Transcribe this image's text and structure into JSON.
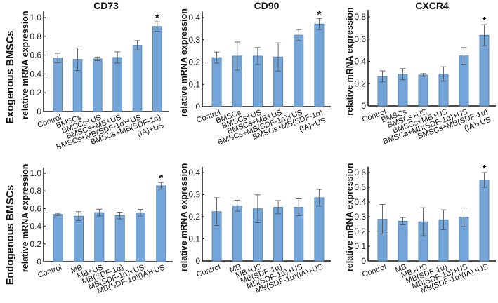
{
  "colors": {
    "bar": "#74a5d8",
    "bar_edge": "#4f7ca8",
    "error": "#555555",
    "axis": "#111111"
  },
  "row_labels": [
    "Exogenous BMSCs",
    "Endogenous BMSCs"
  ],
  "chart_data": [
    {
      "type": "bar",
      "title": "CD73",
      "row": 0,
      "ylabel": "relative mRNA expression",
      "ylim": [
        0,
        1.05
      ],
      "yticks": [
        "0",
        "0.2",
        "0.4",
        "0.6",
        "0.8",
        "1.0"
      ],
      "ytick_values": [
        0,
        0.2,
        0.4,
        0.6,
        0.8,
        1.0
      ],
      "categories": [
        "Control",
        "BMSCs",
        "BMSCs+US",
        "BMSCs+MB+US",
        "BMSCs+MB(SDF-1α)+US",
        "BMSCs+MB(SDF-1α)\n(IA)+US"
      ],
      "values": [
        0.57,
        0.555,
        0.56,
        0.575,
        0.705,
        0.905
      ],
      "errors": [
        0.05,
        0.12,
        0.02,
        0.06,
        0.05,
        0.05
      ],
      "significant": [
        false,
        false,
        false,
        false,
        false,
        true
      ],
      "sig_label": "*"
    },
    {
      "type": "bar",
      "title": "CD90",
      "row": 0,
      "ylabel": "relative mRNA expression",
      "ylim": [
        0,
        0.42
      ],
      "yticks": [
        "0",
        "0.1",
        "0.2",
        "0.3",
        "0.4"
      ],
      "ytick_values": [
        0,
        0.1,
        0.2,
        0.3,
        0.4
      ],
      "categories": [
        "Control",
        "BMSCs",
        "BMSCs+US",
        "BMSCs+MB+US",
        "BMSCs+MB(SDF-1α)+US",
        "BMSCs+MB(SDF-1α)\n(IA)+US"
      ],
      "values": [
        0.22,
        0.227,
        0.227,
        0.223,
        0.321,
        0.371
      ],
      "errors": [
        0.025,
        0.063,
        0.038,
        0.063,
        0.025,
        0.025
      ],
      "significant": [
        false,
        false,
        false,
        false,
        false,
        true
      ],
      "sig_label": "*"
    },
    {
      "type": "bar",
      "title": "CXCR4",
      "row": 0,
      "ylabel": "relative mRNA expression",
      "ylim": [
        0,
        0.85
      ],
      "yticks": [
        "0",
        "0.2",
        "0.4",
        "0.6",
        "0.8"
      ],
      "ytick_values": [
        0,
        0.2,
        0.4,
        0.6,
        0.8
      ],
      "categories": [
        "Control",
        "BMSCs",
        "BMSCs+US",
        "BMSCs+MB+US",
        "BMSCs+MB(SDF-1α)+US",
        "BMSCs+MB(SDF-1α)\n(IA)+US"
      ],
      "values": [
        0.265,
        0.285,
        0.278,
        0.287,
        0.449,
        0.635
      ],
      "errors": [
        0.05,
        0.05,
        0.012,
        0.065,
        0.075,
        0.095
      ],
      "significant": [
        false,
        false,
        false,
        false,
        false,
        true
      ],
      "sig_label": "*"
    },
    {
      "type": "bar",
      "title": "",
      "row": 1,
      "ylabel": "relative mRNA expression",
      "ylim": [
        0,
        1.05
      ],
      "yticks": [
        "0",
        "0.2",
        "0.4",
        "0.6",
        "0.8",
        "1.0"
      ],
      "ytick_values": [
        0,
        0.2,
        0.4,
        0.6,
        0.8,
        1.0
      ],
      "categories": [
        "Control",
        "MB",
        "MB+US",
        "MB(SDF-1α)",
        "MB(SDF-1α)+US",
        "MB(SDF-1α)(IA)+US"
      ],
      "values": [
        0.535,
        0.515,
        0.555,
        0.522,
        0.552,
        0.858
      ],
      "errors": [
        0.012,
        0.05,
        0.038,
        0.038,
        0.038,
        0.038
      ],
      "significant": [
        false,
        false,
        false,
        false,
        false,
        true
      ],
      "sig_label": "*"
    },
    {
      "type": "bar",
      "title": "",
      "row": 1,
      "ylabel": "relative mRNA expression",
      "ylim": [
        0,
        0.42
      ],
      "yticks": [
        "0",
        "0.1",
        "0.2",
        "0.3",
        "0.4"
      ],
      "ytick_values": [
        0,
        0.1,
        0.2,
        0.3,
        0.4
      ],
      "categories": [
        "Control",
        "MB",
        "MB+US",
        "MB(SDF-1α)",
        "MB(SDF-1α)+US",
        "MB(SDF-1α)(IA)+US"
      ],
      "values": [
        0.223,
        0.25,
        0.236,
        0.243,
        0.243,
        0.286
      ],
      "errors": [
        0.063,
        0.025,
        0.063,
        0.03,
        0.038,
        0.038
      ],
      "significant": [
        false,
        false,
        false,
        false,
        false,
        false
      ],
      "sig_label": "*"
    },
    {
      "type": "bar",
      "title": "",
      "row": 1,
      "ylabel": "relative mRNA expression",
      "ylim": [
        0,
        0.63
      ],
      "yticks": [
        "0",
        "0.1",
        "0.2",
        "0.3",
        "0.4",
        "0.5",
        "0.6"
      ],
      "ytick_values": [
        0,
        0.1,
        0.2,
        0.3,
        0.4,
        0.5,
        0.6
      ],
      "categories": [
        "Control",
        "MB",
        "MB+US",
        "MB(SDF-1α)",
        "MB(SDF-1α)+US",
        "MB(SDF-1α)(IA)+US"
      ],
      "values": [
        0.283,
        0.27,
        0.266,
        0.28,
        0.297,
        0.55
      ],
      "errors": [
        0.1,
        0.025,
        0.095,
        0.067,
        0.063,
        0.05
      ],
      "significant": [
        false,
        false,
        false,
        false,
        false,
        true
      ],
      "sig_label": "*"
    }
  ]
}
